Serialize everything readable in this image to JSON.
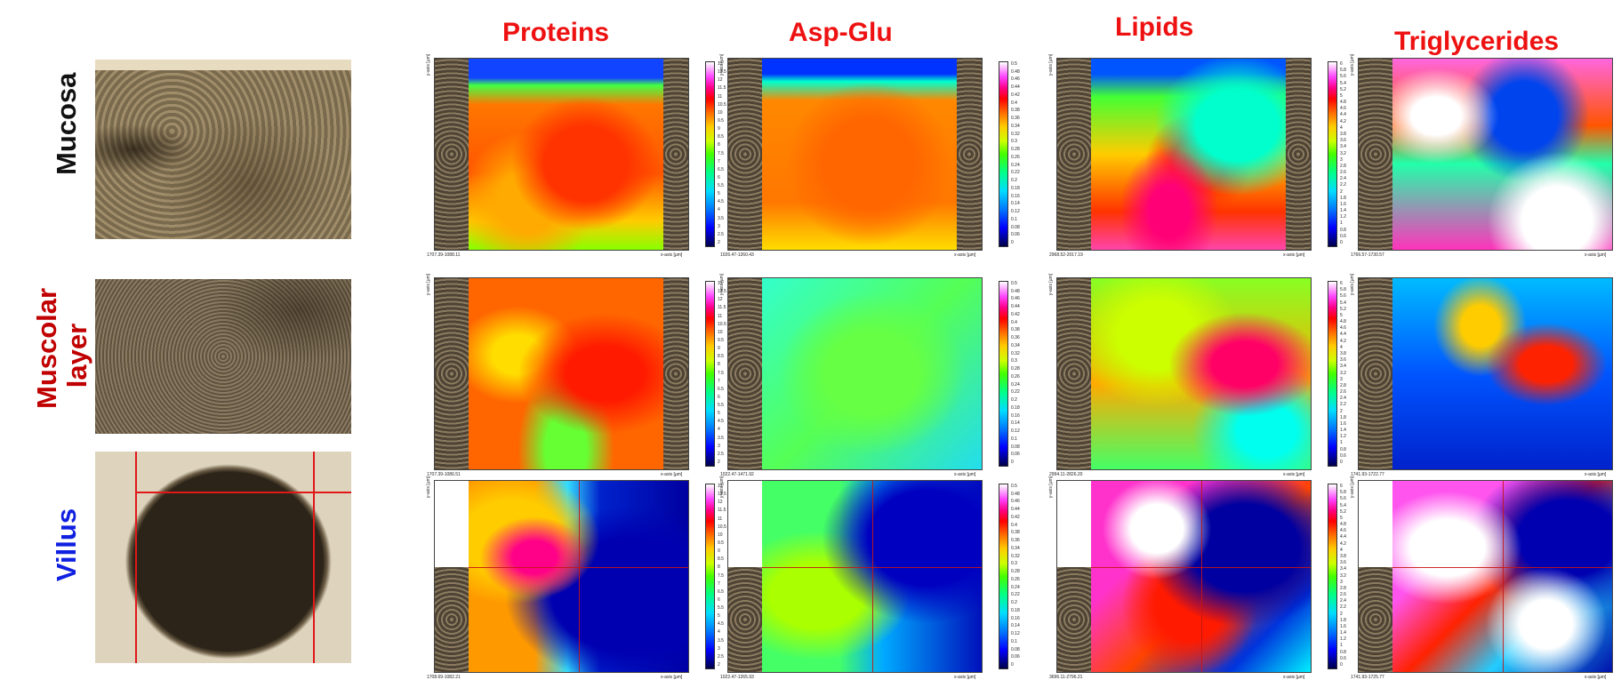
{
  "columns": [
    "Proteins",
    "Asp-Glu",
    "Lipids",
    "Triglycerides"
  ],
  "rows": [
    {
      "label": "Mucosa",
      "color": "#111111"
    },
    {
      "label": "Muscolar\nlayer",
      "color": "#c00000"
    },
    {
      "label": "Villus",
      "color": "#1020e0"
    }
  ],
  "axis": {
    "y_axis_label": "y-axis [µm]",
    "x_axis_label": "x-axis [µm]"
  },
  "panel_footers": [
    [
      "1707.39-1088.11",
      "1026.47-1260.43",
      "2968.52-2017.19",
      "1766.57-1730.57"
    ],
    [
      "1707.39-1086.51",
      "1022.47-1471.92",
      "2994.11-2826.20",
      "1741.93-1722.77"
    ],
    [
      "1708.69-1082.21",
      "1022.47-1265.93",
      "3696.11-2796.21",
      "1741.93-1725.77"
    ]
  ],
  "colorbars": [
    [
      "13",
      "12.5",
      "12",
      "11.5",
      "11",
      "10.5",
      "10",
      "9.5",
      "9",
      "8.5",
      "8",
      "7.5",
      "7",
      "6.5",
      "6",
      "5.5",
      "5",
      "4.5",
      "4",
      "3.5",
      "3",
      "2.5",
      "2"
    ],
    [
      "0.5",
      "0.48",
      "0.46",
      "0.44",
      "0.42",
      "0.4",
      "0.38",
      "0.36",
      "0.34",
      "0.32",
      "0.3",
      "0.28",
      "0.26",
      "0.24",
      "0.22",
      "0.2",
      "0.18",
      "0.16",
      "0.14",
      "0.12",
      "0.1",
      "0.08",
      "0.06",
      "0"
    ],
    [
      "6",
      "5.8",
      "5.6",
      "5.4",
      "5.2",
      "5",
      "4.8",
      "4.6",
      "4.4",
      "4.2",
      "4",
      "3.8",
      "3.6",
      "3.4",
      "3.2",
      "3",
      "2.8",
      "2.6",
      "2.4",
      "2.2",
      "2",
      "1.8",
      "1.6",
      "1.4",
      "1.2",
      "1",
      "0.8",
      "0.6",
      "0"
    ],
    [
      "0.6",
      "0.54",
      "0.5",
      "0.46",
      "0.42",
      "0.38",
      "0.34",
      "0.3",
      "0.26",
      "0.22",
      "0.18",
      "0.14",
      "0.1",
      "0.06",
      "0"
    ]
  ],
  "palette": {
    "header_red": "#ee1111",
    "map_low": "#0000c8",
    "map_high": "#ffffff"
  }
}
